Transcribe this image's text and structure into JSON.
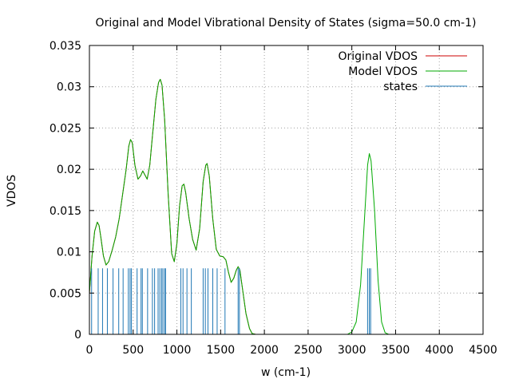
{
  "chart_data": {
    "type": "line",
    "title": "Original and Model Vibrational Density of States (sigma=50.0 cm-1)",
    "xlabel": "w (cm-1)",
    "ylabel": "VDOS",
    "xlim": [
      0,
      4500
    ],
    "ylim": [
      0,
      0.035
    ],
    "grid": true,
    "grid_style": "dotted",
    "legend_position": "top-right",
    "xticks": [
      0,
      500,
      1000,
      1500,
      2000,
      2500,
      3000,
      3500,
      4000,
      4500
    ],
    "xtick_labels": [
      "0",
      "500",
      "1000",
      "1500",
      "2000",
      "2500",
      "3000",
      "3500",
      "4000",
      "4500"
    ],
    "yticks": [
      0,
      0.005,
      0.01,
      0.015,
      0.02,
      0.025,
      0.03,
      0.035
    ],
    "ytick_labels": [
      "0",
      "0.005",
      "0.01",
      "0.015",
      "0.02",
      "0.025",
      "0.03",
      "0.035"
    ],
    "series": [
      {
        "name": "Original VDOS",
        "color": "#cc0000",
        "style": "line",
        "points": [
          [
            0,
            0.005
          ],
          [
            30,
            0.0095
          ],
          [
            60,
            0.0125
          ],
          [
            90,
            0.0136
          ],
          [
            110,
            0.0132
          ],
          [
            130,
            0.0118
          ],
          [
            160,
            0.0095
          ],
          [
            190,
            0.0084
          ],
          [
            220,
            0.0088
          ],
          [
            260,
            0.0102
          ],
          [
            300,
            0.0118
          ],
          [
            340,
            0.014
          ],
          [
            380,
            0.017
          ],
          [
            420,
            0.02
          ],
          [
            450,
            0.0228
          ],
          [
            470,
            0.0236
          ],
          [
            490,
            0.0232
          ],
          [
            520,
            0.0205
          ],
          [
            555,
            0.0188
          ],
          [
            585,
            0.0192
          ],
          [
            610,
            0.0198
          ],
          [
            635,
            0.0193
          ],
          [
            660,
            0.0188
          ],
          [
            690,
            0.0205
          ],
          [
            720,
            0.024
          ],
          [
            760,
            0.0285
          ],
          [
            790,
            0.0305
          ],
          [
            810,
            0.0309
          ],
          [
            830,
            0.0302
          ],
          [
            860,
            0.026
          ],
          [
            900,
            0.017
          ],
          [
            940,
            0.0098
          ],
          [
            970,
            0.0088
          ],
          [
            1000,
            0.011
          ],
          [
            1030,
            0.0155
          ],
          [
            1060,
            0.018
          ],
          [
            1080,
            0.0182
          ],
          [
            1100,
            0.0172
          ],
          [
            1140,
            0.014
          ],
          [
            1180,
            0.0115
          ],
          [
            1220,
            0.0102
          ],
          [
            1260,
            0.0128
          ],
          [
            1300,
            0.0185
          ],
          [
            1330,
            0.0205
          ],
          [
            1345,
            0.0207
          ],
          [
            1370,
            0.0192
          ],
          [
            1410,
            0.014
          ],
          [
            1450,
            0.0103
          ],
          [
            1490,
            0.0095
          ],
          [
            1530,
            0.0094
          ],
          [
            1560,
            0.009
          ],
          [
            1590,
            0.0075
          ],
          [
            1620,
            0.0063
          ],
          [
            1650,
            0.0068
          ],
          [
            1680,
            0.0078
          ],
          [
            1700,
            0.0082
          ],
          [
            1720,
            0.0078
          ],
          [
            1750,
            0.0055
          ],
          [
            1790,
            0.0025
          ],
          [
            1830,
            0.0007
          ],
          [
            1860,
            0.0001
          ],
          [
            1900,
            0.0
          ]
        ]
      },
      {
        "name": "Model VDOS",
        "color": "#00aa00",
        "style": "line",
        "points": [
          [
            0,
            0.005
          ],
          [
            30,
            0.0095
          ],
          [
            60,
            0.0125
          ],
          [
            90,
            0.0136
          ],
          [
            110,
            0.0132
          ],
          [
            130,
            0.0118
          ],
          [
            160,
            0.0095
          ],
          [
            190,
            0.0084
          ],
          [
            220,
            0.0088
          ],
          [
            260,
            0.0102
          ],
          [
            300,
            0.0118
          ],
          [
            340,
            0.014
          ],
          [
            380,
            0.017
          ],
          [
            420,
            0.02
          ],
          [
            450,
            0.0228
          ],
          [
            470,
            0.0236
          ],
          [
            490,
            0.0232
          ],
          [
            520,
            0.0205
          ],
          [
            555,
            0.0188
          ],
          [
            585,
            0.0192
          ],
          [
            610,
            0.0198
          ],
          [
            635,
            0.0193
          ],
          [
            660,
            0.0188
          ],
          [
            690,
            0.0205
          ],
          [
            720,
            0.024
          ],
          [
            760,
            0.0285
          ],
          [
            790,
            0.0305
          ],
          [
            810,
            0.0309
          ],
          [
            830,
            0.0302
          ],
          [
            860,
            0.026
          ],
          [
            900,
            0.017
          ],
          [
            940,
            0.0098
          ],
          [
            970,
            0.0088
          ],
          [
            1000,
            0.011
          ],
          [
            1030,
            0.0155
          ],
          [
            1060,
            0.018
          ],
          [
            1080,
            0.0182
          ],
          [
            1100,
            0.0172
          ],
          [
            1140,
            0.014
          ],
          [
            1180,
            0.0115
          ],
          [
            1220,
            0.0102
          ],
          [
            1260,
            0.0128
          ],
          [
            1300,
            0.0185
          ],
          [
            1330,
            0.0205
          ],
          [
            1345,
            0.0207
          ],
          [
            1370,
            0.0192
          ],
          [
            1410,
            0.014
          ],
          [
            1450,
            0.0103
          ],
          [
            1490,
            0.0095
          ],
          [
            1530,
            0.0094
          ],
          [
            1560,
            0.009
          ],
          [
            1590,
            0.0075
          ],
          [
            1620,
            0.0063
          ],
          [
            1650,
            0.0068
          ],
          [
            1680,
            0.0078
          ],
          [
            1700,
            0.0082
          ],
          [
            1720,
            0.0078
          ],
          [
            1750,
            0.0055
          ],
          [
            1790,
            0.0025
          ],
          [
            1830,
            0.0007
          ],
          [
            1860,
            0.0001
          ],
          [
            1900,
            0.0
          ],
          [
            2950,
            0.0
          ],
          [
            3000,
            0.0003
          ],
          [
            3050,
            0.0015
          ],
          [
            3100,
            0.006
          ],
          [
            3150,
            0.015
          ],
          [
            3180,
            0.0205
          ],
          [
            3200,
            0.0219
          ],
          [
            3220,
            0.021
          ],
          [
            3260,
            0.015
          ],
          [
            3300,
            0.0065
          ],
          [
            3340,
            0.0015
          ],
          [
            3380,
            0.0002
          ],
          [
            3420,
            0.0
          ]
        ]
      },
      {
        "name": "states",
        "color": "#1f77b4",
        "style": "impulses",
        "height": 0.008,
        "x": [
          25,
          100,
          150,
          205,
          270,
          335,
          385,
          445,
          465,
          480,
          545,
          590,
          605,
          665,
          720,
          745,
          785,
          805,
          825,
          840,
          860,
          870,
          1045,
          1070,
          1115,
          1165,
          1300,
          1325,
          1355,
          1410,
          1460,
          1550,
          1700,
          1715,
          3180,
          3200,
          3215
        ]
      }
    ]
  }
}
